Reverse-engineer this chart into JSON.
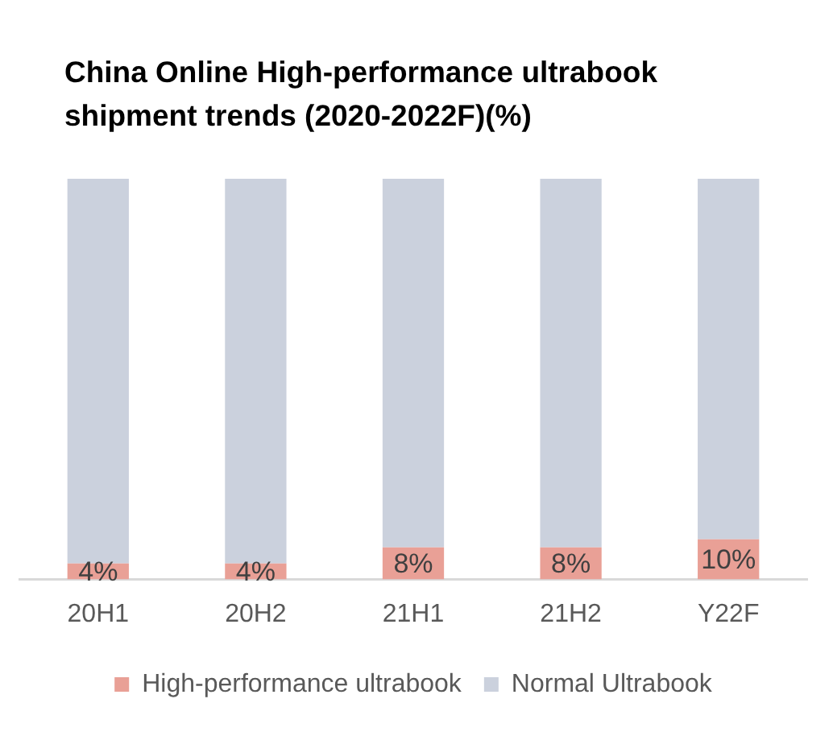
{
  "chart_data": {
    "type": "bar",
    "title": "China Online High-performance ultrabook shipment trends (2020-2022F)(%)",
    "categories": [
      "20H1",
      "20H2",
      "21H1",
      "21H2",
      "Y22F"
    ],
    "series": [
      {
        "name": "High-performance ultrabook",
        "color": "#e9a096",
        "values": [
          4,
          4,
          8,
          8,
          10
        ],
        "value_labels": [
          "4%",
          "4%",
          "8%",
          "8%",
          "10%"
        ]
      },
      {
        "name": "Normal Ultrabook",
        "color": "#cbd1dd",
        "values": [
          96,
          96,
          92,
          92,
          90
        ]
      }
    ],
    "stacked": true,
    "legend": "bottom",
    "tick_labels": "x"
  }
}
